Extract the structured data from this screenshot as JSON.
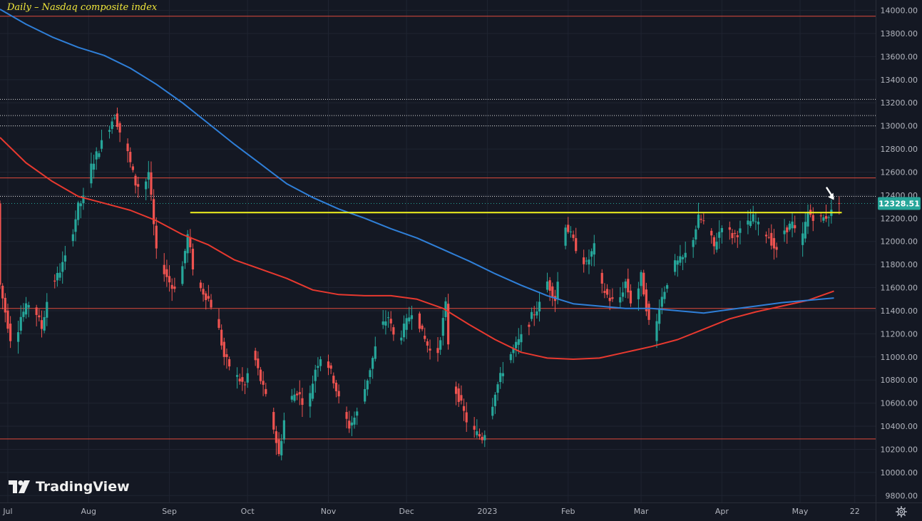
{
  "title": "Daily – Nasdaq composite index",
  "brand": "TradingView",
  "chart_data": {
    "type": "candlestick",
    "y_ticks": [
      14000,
      13800,
      13600,
      13400,
      13200,
      13000,
      12800,
      12600,
      12400,
      12200,
      12000,
      11800,
      11600,
      11400,
      11200,
      11000,
      10800,
      10600,
      10400,
      10200,
      10000,
      9800
    ],
    "ylim": [
      9740,
      14090
    ],
    "x_ticks": [
      {
        "label": "Jul",
        "day": 3
      },
      {
        "label": "Aug",
        "day": 34
      },
      {
        "label": "Sep",
        "day": 65
      },
      {
        "label": "Oct",
        "day": 95
      },
      {
        "label": "Nov",
        "day": 126
      },
      {
        "label": "Dec",
        "day": 156
      },
      {
        "label": "2023",
        "day": 187
      },
      {
        "label": "Feb",
        "day": 218
      },
      {
        "label": "Mar",
        "day": 246
      },
      {
        "label": "Apr",
        "day": 277
      },
      {
        "label": "May",
        "day": 307
      },
      {
        "label": "22",
        "day": 328
      }
    ],
    "xlim": [
      0,
      336
    ],
    "last_price": {
      "label": "12328.51",
      "value": 12328.51
    },
    "horizontal_lines": [
      {
        "value": 13950,
        "style": "solid",
        "color": "#e04a3c"
      },
      {
        "value": 13230,
        "style": "dotted",
        "color": "#d8d8d8"
      },
      {
        "value": 13090,
        "style": "dotted",
        "color": "#d8d8d8"
      },
      {
        "value": 13000,
        "style": "dotted",
        "color": "#d8d8d8"
      },
      {
        "value": 12550,
        "style": "solid",
        "color": "#e04a3c"
      },
      {
        "value": 12390,
        "style": "dotted",
        "color": "#d8d8d8"
      },
      {
        "value": 11420,
        "style": "solid",
        "color": "#e04a3c"
      },
      {
        "value": 10290,
        "style": "solid",
        "color": "#e04a3c"
      }
    ],
    "resistance_line": {
      "value": 12250,
      "from_day": 73,
      "to_day": 323,
      "color": "#f2f21e"
    },
    "ma_red": {
      "color": "#e8392f",
      "points": [
        [
          0,
          12900
        ],
        [
          10,
          12680
        ],
        [
          20,
          12520
        ],
        [
          30,
          12390
        ],
        [
          40,
          12330
        ],
        [
          50,
          12270
        ],
        [
          60,
          12180
        ],
        [
          70,
          12060
        ],
        [
          80,
          11970
        ],
        [
          90,
          11840
        ],
        [
          100,
          11760
        ],
        [
          110,
          11680
        ],
        [
          120,
          11580
        ],
        [
          130,
          11540
        ],
        [
          140,
          11530
        ],
        [
          150,
          11530
        ],
        [
          160,
          11500
        ],
        [
          170,
          11420
        ],
        [
          180,
          11280
        ],
        [
          190,
          11150
        ],
        [
          200,
          11040
        ],
        [
          210,
          10990
        ],
        [
          220,
          10980
        ],
        [
          230,
          10990
        ],
        [
          240,
          11040
        ],
        [
          250,
          11090
        ],
        [
          260,
          11150
        ],
        [
          270,
          11240
        ],
        [
          280,
          11330
        ],
        [
          290,
          11390
        ],
        [
          300,
          11440
        ],
        [
          310,
          11490
        ],
        [
          320,
          11570
        ]
      ]
    },
    "ma_blue": {
      "color": "#2f7fd8",
      "points": [
        [
          0,
          14010
        ],
        [
          10,
          13880
        ],
        [
          20,
          13770
        ],
        [
          30,
          13680
        ],
        [
          40,
          13610
        ],
        [
          50,
          13500
        ],
        [
          60,
          13360
        ],
        [
          70,
          13200
        ],
        [
          80,
          13020
        ],
        [
          90,
          12840
        ],
        [
          100,
          12670
        ],
        [
          110,
          12500
        ],
        [
          120,
          12380
        ],
        [
          130,
          12280
        ],
        [
          140,
          12200
        ],
        [
          150,
          12110
        ],
        [
          160,
          12030
        ],
        [
          170,
          11930
        ],
        [
          180,
          11830
        ],
        [
          190,
          11720
        ],
        [
          200,
          11620
        ],
        [
          210,
          11530
        ],
        [
          220,
          11460
        ],
        [
          230,
          11440
        ],
        [
          240,
          11420
        ],
        [
          250,
          11420
        ],
        [
          260,
          11400
        ],
        [
          270,
          11380
        ],
        [
          280,
          11410
        ],
        [
          290,
          11440
        ],
        [
          300,
          11470
        ],
        [
          310,
          11490
        ],
        [
          320,
          11510
        ]
      ]
    },
    "bull_color": "#26a69a",
    "bear_color": "#ef5350",
    "annotation": {
      "type": "arrow",
      "color": "#ffffff",
      "day": 320,
      "value": 12340
    }
  }
}
